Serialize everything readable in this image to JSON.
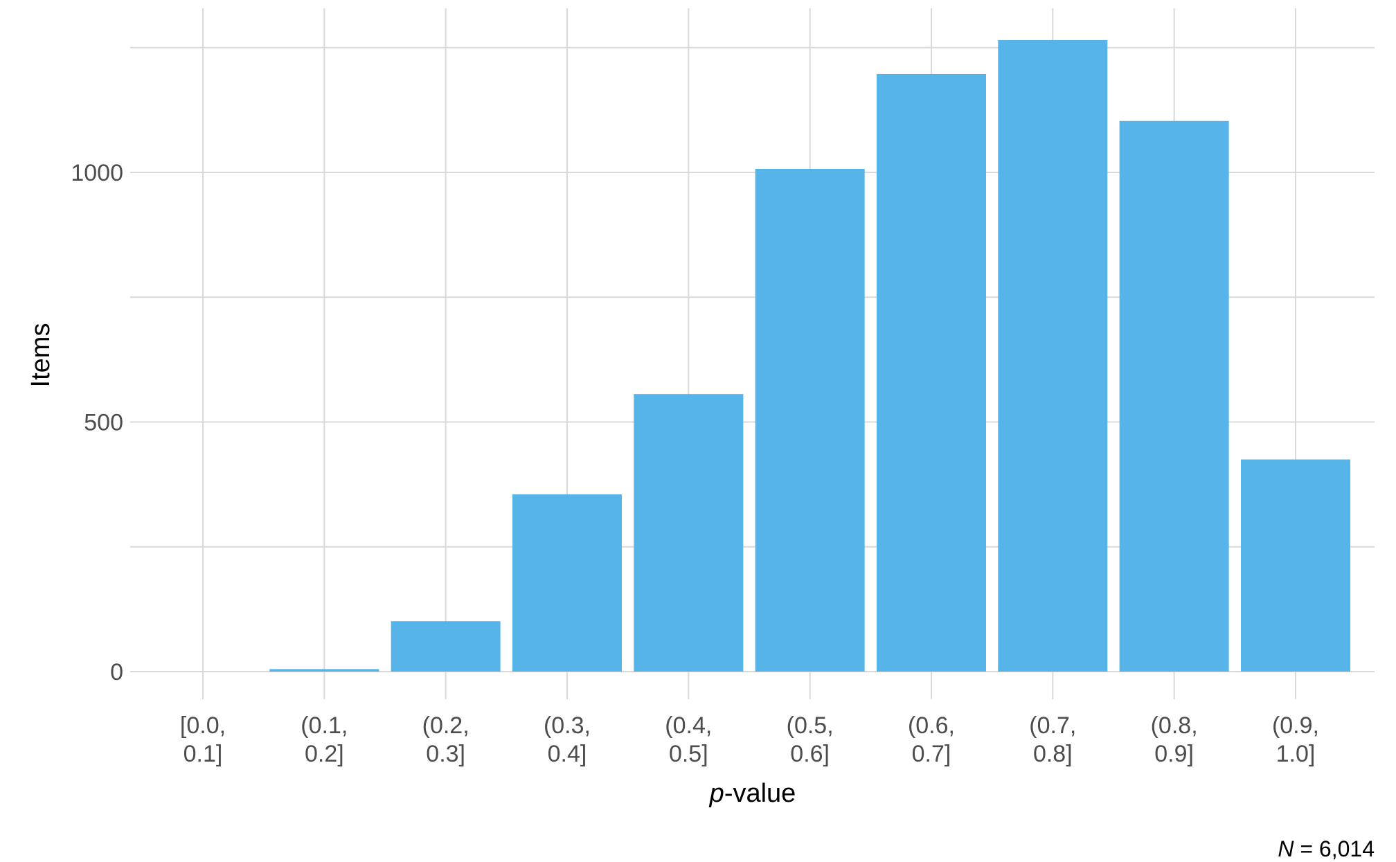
{
  "chart_data": {
    "type": "bar",
    "title": "",
    "xlabel": "p-value",
    "xlabel_italic_part": "p",
    "xlabel_rest": "-value",
    "ylabel": "Items",
    "caption": "N = 6,014",
    "caption_italic_part": "N",
    "caption_rest": " = 6,014",
    "categories": [
      [
        "[0.0,",
        "0.1]"
      ],
      [
        "(0.1,",
        "0.2]"
      ],
      [
        "(0.2,",
        "0.3]"
      ],
      [
        "(0.3,",
        "0.4]"
      ],
      [
        "(0.4,",
        "0.5]"
      ],
      [
        "(0.5,",
        "0.6]"
      ],
      [
        "(0.6,",
        "0.7]"
      ],
      [
        "(0.7,",
        "0.8]"
      ],
      [
        "(0.8,",
        "0.9]"
      ],
      [
        "(0.9,",
        "1.0]"
      ]
    ],
    "values": [
      0,
      5,
      101,
      355,
      556,
      1007,
      1197,
      1265,
      1103,
      425
    ],
    "ylim": [
      0,
      1300
    ],
    "y_major_ticks": [
      0,
      500,
      1000
    ],
    "y_minor_gridlines": [
      250,
      750,
      1250
    ],
    "grid": true,
    "legend": null,
    "bar_color": "#56B4E9",
    "grid_color": "#d9d9d9",
    "tick_label_color": "#4d4d4d"
  }
}
